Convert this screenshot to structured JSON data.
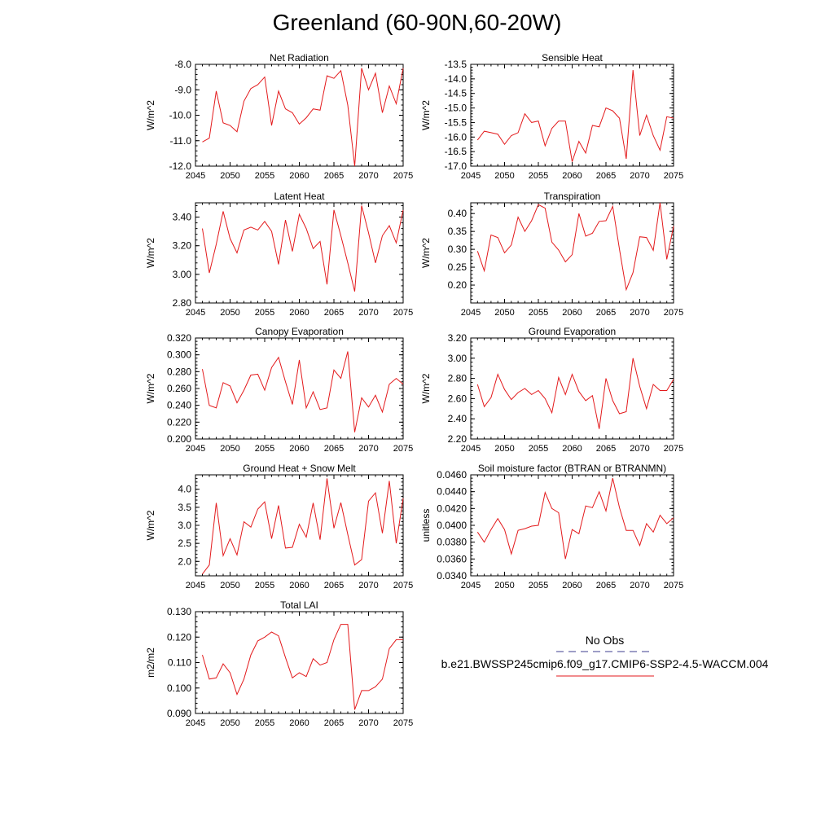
{
  "title": "Greenland (60-90N,60-20W)",
  "colors": {
    "model": "#e31a1c",
    "obs": "#3d3d8f",
    "axis": "#000000"
  },
  "legend": {
    "obs_label": "No Obs",
    "model_label": "b.e21.BWSSP245cmip6.f09_g17.CMIP6-SSP2-4.5-WACCM.004"
  },
  "chart_data": [
    {
      "type": "line",
      "title": "Net Radiation",
      "ylabel": "W/m^2",
      "xlim": [
        2045,
        2075
      ],
      "ylim": [
        -12.0,
        -8.0
      ],
      "xticks": [
        2045,
        2050,
        2055,
        2060,
        2065,
        2070,
        2075
      ],
      "yticks": [
        -12.0,
        -11.0,
        -10.0,
        -9.0,
        -8.0
      ],
      "ydecimals": 1,
      "series": [
        {
          "x": [
            2046,
            2047,
            2048,
            2049,
            2050,
            2051,
            2052,
            2053,
            2054,
            2055,
            2056,
            2057,
            2058,
            2059,
            2060,
            2061,
            2062,
            2063,
            2064,
            2065,
            2066,
            2067,
            2068,
            2069,
            2070,
            2071,
            2072,
            2073,
            2074,
            2075
          ],
          "values": [
            -11.05,
            -10.9,
            -9.05,
            -10.3,
            -10.4,
            -10.65,
            -9.45,
            -8.95,
            -8.8,
            -8.5,
            -10.4,
            -9.05,
            -9.75,
            -9.9,
            -10.35,
            -10.1,
            -9.75,
            -9.8,
            -8.45,
            -8.55,
            -8.25,
            -9.6,
            -12.0,
            -8.15,
            -9.0,
            -8.35,
            -9.9,
            -8.85,
            -9.55,
            -8.15
          ]
        }
      ]
    },
    {
      "type": "line",
      "title": "Sensible Heat",
      "ylabel": "W/m^2",
      "xlim": [
        2045,
        2075
      ],
      "ylim": [
        -17.0,
        -13.5
      ],
      "xticks": [
        2045,
        2050,
        2055,
        2060,
        2065,
        2070,
        2075
      ],
      "yticks": [
        -17.0,
        -16.5,
        -16.0,
        -15.5,
        -15.0,
        -14.5,
        -14.0,
        -13.5
      ],
      "ydecimals": 1,
      "series": [
        {
          "x": [
            2046,
            2047,
            2048,
            2049,
            2050,
            2051,
            2052,
            2053,
            2054,
            2055,
            2056,
            2057,
            2058,
            2059,
            2060,
            2061,
            2062,
            2063,
            2064,
            2065,
            2066,
            2067,
            2068,
            2069,
            2070,
            2071,
            2072,
            2073,
            2074,
            2075
          ],
          "values": [
            -16.1,
            -15.8,
            -15.85,
            -15.9,
            -16.25,
            -15.95,
            -15.85,
            -15.2,
            -15.5,
            -15.45,
            -16.3,
            -15.7,
            -15.45,
            -15.45,
            -16.85,
            -16.15,
            -16.55,
            -15.6,
            -15.65,
            -15.0,
            -15.1,
            -15.35,
            -16.75,
            -13.7,
            -15.95,
            -15.25,
            -15.95,
            -16.45,
            -15.3,
            -15.35
          ]
        }
      ]
    },
    {
      "type": "line",
      "title": "Latent Heat",
      "ylabel": "W/m^2",
      "xlim": [
        2045,
        2075
      ],
      "ylim": [
        2.8,
        3.5
      ],
      "xticks": [
        2045,
        2050,
        2055,
        2060,
        2065,
        2070,
        2075
      ],
      "yticks": [
        2.8,
        3.0,
        3.2,
        3.4
      ],
      "ydecimals": 2,
      "series": [
        {
          "x": [
            2046,
            2047,
            2048,
            2049,
            2050,
            2051,
            2052,
            2053,
            2054,
            2055,
            2056,
            2057,
            2058,
            2059,
            2060,
            2061,
            2062,
            2063,
            2064,
            2065,
            2066,
            2067,
            2068,
            2069,
            2070,
            2071,
            2072,
            2073,
            2074,
            2075
          ],
          "values": [
            3.32,
            3.01,
            3.21,
            3.44,
            3.25,
            3.15,
            3.31,
            3.33,
            3.31,
            3.37,
            3.3,
            3.07,
            3.38,
            3.16,
            3.42,
            3.32,
            3.18,
            3.23,
            2.93,
            3.45,
            3.27,
            3.08,
            2.88,
            3.48,
            3.29,
            3.08,
            3.27,
            3.34,
            3.22,
            3.45
          ]
        }
      ]
    },
    {
      "type": "line",
      "title": "Transpiration",
      "ylabel": "W/m^2",
      "xlim": [
        2045,
        2075
      ],
      "ylim": [
        0.15,
        0.43
      ],
      "xticks": [
        2045,
        2050,
        2055,
        2060,
        2065,
        2070,
        2075
      ],
      "yticks": [
        0.2,
        0.25,
        0.3,
        0.35,
        0.4
      ],
      "ydecimals": 2,
      "series": [
        {
          "x": [
            2046,
            2047,
            2048,
            2049,
            2050,
            2051,
            2052,
            2053,
            2054,
            2055,
            2056,
            2057,
            2058,
            2059,
            2060,
            2061,
            2062,
            2063,
            2064,
            2065,
            2066,
            2067,
            2068,
            2069,
            2070,
            2071,
            2072,
            2073,
            2074,
            2075
          ],
          "values": [
            0.295,
            0.24,
            0.34,
            0.333,
            0.29,
            0.312,
            0.39,
            0.35,
            0.38,
            0.425,
            0.415,
            0.32,
            0.298,
            0.265,
            0.285,
            0.4,
            0.337,
            0.345,
            0.378,
            0.38,
            0.42,
            0.3,
            0.187,
            0.235,
            0.335,
            0.333,
            0.297,
            0.43,
            0.272,
            0.365
          ]
        }
      ]
    },
    {
      "type": "line",
      "title": "Canopy Evaporation",
      "ylabel": "W/m^2",
      "xlim": [
        2045,
        2075
      ],
      "ylim": [
        0.2,
        0.32
      ],
      "xticks": [
        2045,
        2050,
        2055,
        2060,
        2065,
        2070,
        2075
      ],
      "yticks": [
        0.2,
        0.22,
        0.24,
        0.26,
        0.28,
        0.3,
        0.32
      ],
      "ydecimals": 3,
      "series": [
        {
          "x": [
            2046,
            2047,
            2048,
            2049,
            2050,
            2051,
            2052,
            2053,
            2054,
            2055,
            2056,
            2057,
            2058,
            2059,
            2060,
            2061,
            2062,
            2063,
            2064,
            2065,
            2066,
            2067,
            2068,
            2069,
            2070,
            2071,
            2072,
            2073,
            2074,
            2075
          ],
          "values": [
            0.283,
            0.24,
            0.237,
            0.267,
            0.263,
            0.243,
            0.258,
            0.276,
            0.277,
            0.258,
            0.285,
            0.297,
            0.268,
            0.241,
            0.294,
            0.237,
            0.256,
            0.235,
            0.237,
            0.282,
            0.272,
            0.304,
            0.208,
            0.249,
            0.238,
            0.252,
            0.232,
            0.265,
            0.272,
            0.265
          ]
        }
      ]
    },
    {
      "type": "line",
      "title": "Ground Evaporation",
      "ylabel": "W/m^2",
      "xlim": [
        2045,
        2075
      ],
      "ylim": [
        2.2,
        3.2
      ],
      "xticks": [
        2045,
        2050,
        2055,
        2060,
        2065,
        2070,
        2075
      ],
      "yticks": [
        2.2,
        2.4,
        2.6,
        2.8,
        3.0,
        3.2
      ],
      "ydecimals": 2,
      "series": [
        {
          "x": [
            2046,
            2047,
            2048,
            2049,
            2050,
            2051,
            2052,
            2053,
            2054,
            2055,
            2056,
            2057,
            2058,
            2059,
            2060,
            2061,
            2062,
            2063,
            2064,
            2065,
            2066,
            2067,
            2068,
            2069,
            2070,
            2071,
            2072,
            2073,
            2074,
            2075
          ],
          "values": [
            2.74,
            2.52,
            2.61,
            2.84,
            2.69,
            2.59,
            2.66,
            2.7,
            2.64,
            2.68,
            2.6,
            2.46,
            2.81,
            2.64,
            2.84,
            2.67,
            2.58,
            2.63,
            2.3,
            2.8,
            2.58,
            2.45,
            2.47,
            3.0,
            2.72,
            2.5,
            2.74,
            2.68,
            2.68,
            2.79
          ]
        }
      ]
    },
    {
      "type": "line",
      "title": "Ground Heat + Snow Melt",
      "ylabel": "W/m^2",
      "xlim": [
        2045,
        2075
      ],
      "ylim": [
        1.6,
        4.4
      ],
      "xticks": [
        2045,
        2050,
        2055,
        2060,
        2065,
        2070,
        2075
      ],
      "yticks": [
        2.0,
        2.5,
        3.0,
        3.5,
        4.0
      ],
      "ydecimals": 1,
      "series": [
        {
          "x": [
            2046,
            2047,
            2048,
            2049,
            2050,
            2051,
            2052,
            2053,
            2054,
            2055,
            2056,
            2057,
            2058,
            2059,
            2060,
            2061,
            2062,
            2063,
            2064,
            2065,
            2066,
            2067,
            2068,
            2069,
            2070,
            2071,
            2072,
            2073,
            2074,
            2075
          ],
          "values": [
            1.65,
            1.9,
            3.62,
            2.16,
            2.63,
            2.18,
            3.1,
            2.95,
            3.45,
            3.65,
            2.63,
            3.55,
            2.37,
            2.39,
            3.03,
            2.67,
            3.62,
            2.6,
            4.3,
            2.92,
            3.63,
            2.75,
            1.9,
            2.05,
            3.67,
            3.9,
            2.78,
            4.23,
            2.5,
            3.75
          ]
        }
      ]
    },
    {
      "type": "line",
      "title": "Soil moisture factor (BTRAN or BTRANMN)",
      "ylabel": "unitless",
      "xlim": [
        2045,
        2075
      ],
      "ylim": [
        0.034,
        0.046
      ],
      "xticks": [
        2045,
        2050,
        2055,
        2060,
        2065,
        2070,
        2075
      ],
      "yticks": [
        0.034,
        0.036,
        0.038,
        0.04,
        0.042,
        0.044,
        0.046
      ],
      "ydecimals": 4,
      "series": [
        {
          "x": [
            2046,
            2047,
            2048,
            2049,
            2050,
            2051,
            2052,
            2053,
            2054,
            2055,
            2056,
            2057,
            2058,
            2059,
            2060,
            2061,
            2062,
            2063,
            2064,
            2065,
            2066,
            2067,
            2068,
            2069,
            2070,
            2071,
            2072,
            2073,
            2074,
            2075
          ],
          "values": [
            0.0392,
            0.038,
            0.0395,
            0.0408,
            0.0395,
            0.0366,
            0.0394,
            0.0396,
            0.0399,
            0.04,
            0.0439,
            0.042,
            0.0415,
            0.036,
            0.0395,
            0.039,
            0.0423,
            0.0421,
            0.044,
            0.0417,
            0.0456,
            0.0421,
            0.0394,
            0.0394,
            0.0376,
            0.0402,
            0.0392,
            0.0412,
            0.0402,
            0.0409
          ]
        }
      ]
    },
    {
      "type": "line",
      "title": "Total LAI",
      "ylabel": "m2/m2",
      "xlim": [
        2045,
        2075
      ],
      "ylim": [
        0.09,
        0.13
      ],
      "xticks": [
        2045,
        2050,
        2055,
        2060,
        2065,
        2070,
        2075
      ],
      "yticks": [
        0.09,
        0.1,
        0.11,
        0.12,
        0.13
      ],
      "ydecimals": 3,
      "series": [
        {
          "x": [
            2046,
            2047,
            2048,
            2049,
            2050,
            2051,
            2052,
            2053,
            2054,
            2055,
            2056,
            2057,
            2058,
            2059,
            2060,
            2061,
            2062,
            2063,
            2064,
            2065,
            2066,
            2067,
            2068,
            2069,
            2070,
            2071,
            2072,
            2073,
            2074,
            2075
          ],
          "values": [
            0.113,
            0.1035,
            0.104,
            0.1095,
            0.106,
            0.0975,
            0.1035,
            0.113,
            0.1185,
            0.12,
            0.122,
            0.1205,
            0.112,
            0.104,
            0.106,
            0.1045,
            0.1115,
            0.109,
            0.11,
            0.119,
            0.125,
            0.125,
            0.0915,
            0.099,
            0.099,
            0.1005,
            0.1035,
            0.1155,
            0.119,
            0.119
          ]
        }
      ]
    }
  ]
}
